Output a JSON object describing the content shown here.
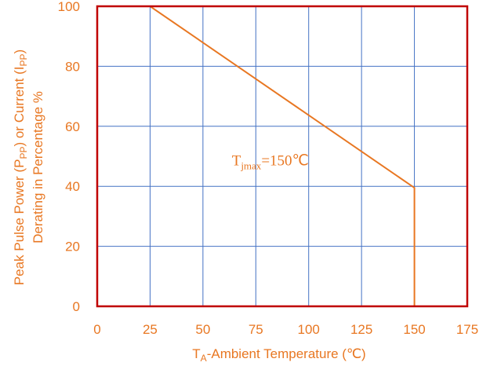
{
  "chart_data": {
    "type": "line",
    "title": "",
    "xlabel": {
      "main": "T",
      "sub": "A",
      "rest": "-Ambient Temperature (℃)"
    },
    "ylabel": {
      "line1": {
        "a": "Peak Pulse Power (P",
        "a_sub": "PP",
        "b": ") or Current (I",
        "b_sub": "PP",
        "c": ")"
      },
      "line2": "Derating in Percentage %"
    },
    "xlim": [
      0,
      175
    ],
    "ylim": [
      0,
      100
    ],
    "x_ticks": [
      "0",
      "25",
      "50",
      "75",
      "100",
      "125",
      "150",
      "175"
    ],
    "y_ticks": [
      "0",
      "20",
      "40",
      "60",
      "80",
      "100"
    ],
    "grid": true,
    "series": [
      {
        "x": [
          0,
          25,
          150,
          150
        ],
        "y": [
          100,
          100,
          39.5,
          0
        ]
      }
    ],
    "annotation": {
      "main": "T",
      "sub": "jmax",
      "rest": "=150℃",
      "x": 100,
      "y": 47
    },
    "colors": {
      "line": "#E87722",
      "grid": "#4472C4",
      "frame": "#C00000",
      "text": "#E87722"
    }
  }
}
